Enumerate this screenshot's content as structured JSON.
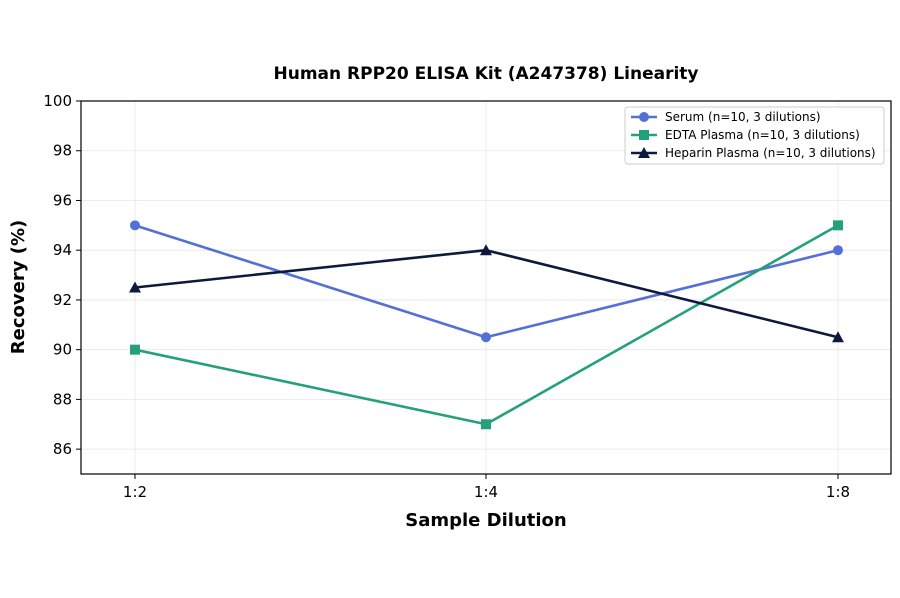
{
  "chart_data": {
    "type": "line",
    "title": "Human RPP20 ELISA Kit (A247378) Linearity",
    "xlabel": "Sample Dilution",
    "ylabel": "Recovery (%)",
    "categories": [
      "1:2",
      "1:4",
      "1:8"
    ],
    "ylim": [
      85,
      100
    ],
    "yticks": [
      86,
      88,
      90,
      92,
      94,
      96,
      98,
      100
    ],
    "grid": true,
    "legend_position": "top-right",
    "series": [
      {
        "name": "Serum (n=10, 3 dilutions)",
        "values": [
          95,
          90.5,
          94
        ],
        "color": "#5470d6",
        "marker": "circle"
      },
      {
        "name": "EDTA Plasma (n=10, 3 dilutions)",
        "values": [
          90,
          87,
          95
        ],
        "color": "#24a07a",
        "marker": "square"
      },
      {
        "name": "Heparin Plasma (n=10, 3 dilutions)",
        "values": [
          92.5,
          94,
          90.5
        ],
        "color": "#0d1a3d",
        "marker": "triangle"
      }
    ]
  }
}
